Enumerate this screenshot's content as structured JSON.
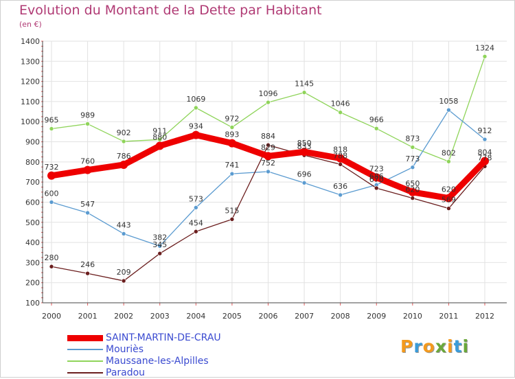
{
  "title": "Evolution du Montant de la Dette par Habitant",
  "unit": "(en €)",
  "logo": {
    "text": "Proxiti",
    "colors": [
      "#f39a1e",
      "#3a9bd9",
      "#f39a1e",
      "#6aa83a",
      "#f39a1e",
      "#3a9bd9",
      "#6aa83a"
    ]
  },
  "chart_data": {
    "type": "line",
    "title": "Evolution du Montant de la Dette par Habitant",
    "ylabel": "(en €)",
    "xlabel": "",
    "ylim": [
      100,
      1400
    ],
    "yticks": [
      100,
      200,
      300,
      400,
      500,
      600,
      700,
      800,
      900,
      1000,
      1100,
      1200,
      1300,
      1400
    ],
    "grid": true,
    "legend": "bottom-left",
    "x": [
      "2000",
      "2001",
      "2002",
      "2003",
      "2004",
      "2005",
      "2006",
      "2007",
      "2008",
      "2009",
      "2010",
      "2011",
      "2012"
    ],
    "series": [
      {
        "name": "SAINT-MARTIN-DE-CRAU",
        "color": "#ee0000",
        "width": 9,
        "values": [
          732,
          760,
          786,
          880,
          934,
          893,
          829,
          850,
          818,
          723,
          650,
          620,
          804
        ],
        "labels": [
          "732",
          "760",
          "786",
          "880",
          "934",
          "893",
          "829",
          "850",
          "818",
          "723",
          "650",
          "620",
          "804"
        ]
      },
      {
        "name": "Mouriès",
        "color": "#5b9bd0",
        "width": 1.3,
        "values": [
          600,
          547,
          443,
          382,
          573,
          741,
          752,
          696,
          636,
          686,
          773,
          1058,
          912
        ],
        "labels": [
          "600",
          "547",
          "443",
          "382",
          "573",
          "741",
          "752",
          "696",
          "636",
          "686",
          "773",
          "1058",
          "912"
        ]
      },
      {
        "name": "Maussane-les-Alpilles",
        "color": "#8fd45a",
        "width": 1.3,
        "values": [
          965,
          989,
          902,
          911,
          1069,
          972,
          1096,
          1145,
          1046,
          966,
          873,
          802,
          1324
        ],
        "labels": [
          "965",
          "989",
          "902",
          "911",
          "1069",
          "972",
          "1096",
          "1145",
          "1046",
          "966",
          "873",
          "802",
          "1324"
        ]
      },
      {
        "name": "Paradou",
        "color": "#6b1e1e",
        "width": 1.3,
        "values": [
          280,
          246,
          209,
          345,
          454,
          515,
          884,
          833,
          788,
          670,
          620,
          569,
          778
        ],
        "labels": [
          "280",
          "246",
          "209",
          "345",
          "454",
          "515",
          "884",
          "833",
          "788",
          "670",
          "620",
          "569",
          "778"
        ]
      }
    ]
  }
}
